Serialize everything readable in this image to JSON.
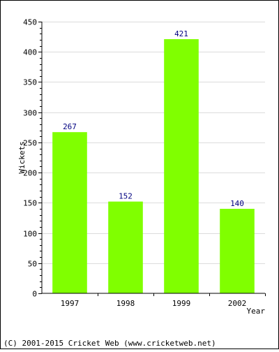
{
  "chart_data": {
    "type": "bar",
    "categories": [
      "1997",
      "1998",
      "1999",
      "2002"
    ],
    "values": [
      267,
      152,
      421,
      140
    ],
    "data_labels": [
      "267",
      "152",
      "421",
      "140"
    ],
    "xlabel": "Year",
    "ylabel": "Wickets",
    "ylim": [
      0,
      450
    ],
    "y_ticks": [
      0,
      50,
      100,
      150,
      200,
      250,
      300,
      350,
      400,
      450
    ],
    "y_tick_labels": [
      "0",
      "50",
      "100",
      "150",
      "200",
      "250",
      "300",
      "350",
      "400",
      "450"
    ],
    "grid": true,
    "bar_color": "#80ff00",
    "label_color": "#000080"
  },
  "footer": {
    "text": "(C) 2001-2015 Cricket Web (www.cricketweb.net)"
  }
}
